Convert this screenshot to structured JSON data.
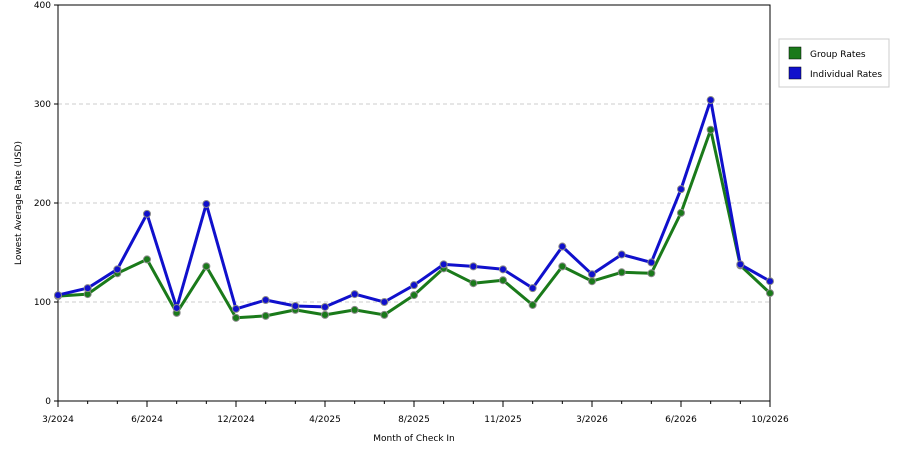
{
  "chart_data": {
    "type": "line",
    "xlabel": "Month of Check In",
    "ylabel": "Lowest Average Rate (USD)",
    "ylim": [
      0,
      400
    ],
    "yticks": [
      0,
      100,
      200,
      300,
      400
    ],
    "grid": true,
    "legend_position": "right",
    "x_tick_labels": [
      "3/2024",
      "6/2024",
      "12/2024",
      "4/2025",
      "8/2025",
      "11/2025",
      "3/2026",
      "6/2026",
      "10/2026"
    ],
    "x_tick_indices": [
      0,
      3,
      6,
      9,
      12,
      15,
      18,
      21,
      24
    ],
    "series": [
      {
        "name": "Group Rates",
        "color": "#1a7a1a",
        "values": [
          106,
          108,
          129,
          143,
          89,
          136,
          84,
          86,
          92,
          87,
          92,
          87,
          107,
          134,
          119,
          122,
          97,
          136,
          121,
          130,
          129,
          190,
          274,
          137,
          109
        ]
      },
      {
        "name": "Individual Rates",
        "color": "#1010cc",
        "values": [
          107,
          114,
          133,
          189,
          94,
          199,
          93,
          102,
          96,
          95,
          108,
          100,
          117,
          138,
          136,
          133,
          114,
          156,
          128,
          148,
          140,
          214,
          304,
          138,
          121
        ]
      }
    ]
  }
}
